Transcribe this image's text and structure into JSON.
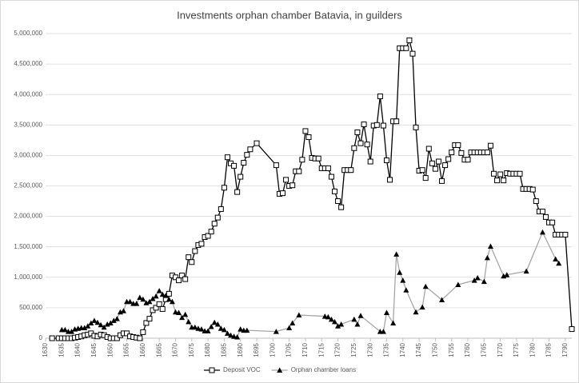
{
  "chart_data": {
    "type": "line",
    "title": "Investments orphan chamber Batavia, in guilders",
    "xlim": [
      1630,
      1792
    ],
    "xticks": [
      1630,
      1635,
      1640,
      1645,
      1650,
      1655,
      1660,
      1665,
      1670,
      1675,
      1680,
      1685,
      1690,
      1695,
      1700,
      1705,
      1710,
      1715,
      1720,
      1725,
      1730,
      1735,
      1740,
      1745,
      1750,
      1755,
      1760,
      1765,
      1770,
      1775,
      1780,
      1785,
      1790
    ],
    "ylim": [
      0,
      5000000
    ],
    "yticks": [
      0,
      {
        "value": 500000,
        "label": "500,000"
      },
      {
        "value": 1000000,
        "label": "1,000,000"
      },
      {
        "value": 1500000,
        "label": "1,500,000"
      },
      {
        "value": 2000000,
        "label": "2,000,000"
      },
      {
        "value": 2500000,
        "label": "2,500,000"
      },
      {
        "value": 3000000,
        "label": "3,000,000"
      },
      {
        "value": 3500000,
        "label": "3,500,000"
      },
      {
        "value": 4000000,
        "label": "4,000,000"
      },
      {
        "value": 4500000,
        "label": "4,500,000"
      },
      {
        "value": 5000000,
        "label": "5,000,000"
      }
    ],
    "grid": true,
    "legend": "bottom",
    "series": [
      {
        "name": "Deposit VOC",
        "color": "#000000",
        "marker": "square",
        "marker_color": "#ffffff",
        "x": [
          1632,
          1634,
          1635,
          1636,
          1637,
          1638,
          1639,
          1640,
          1641,
          1642,
          1643,
          1644,
          1645,
          1646,
          1647,
          1648,
          1649,
          1650,
          1651,
          1652,
          1653,
          1654,
          1655,
          1656,
          1657,
          1658,
          1659,
          1660,
          1661,
          1662,
          1663,
          1664,
          1665,
          1666,
          1667,
          1668,
          1669,
          1670,
          1671,
          1672,
          1673,
          1674,
          1675,
          1676,
          1677,
          1678,
          1679,
          1680,
          1681,
          1682,
          1683,
          1684,
          1685,
          1686,
          1687,
          1688,
          1689,
          1690,
          1691,
          1692,
          1693,
          1695,
          1701,
          1702,
          1703,
          1704,
          1705,
          1706,
          1707,
          1708,
          1709,
          1710,
          1711,
          1712,
          1713,
          1714,
          1715,
          1716,
          1717,
          1718,
          1719,
          1720,
          1721,
          1722,
          1723,
          1724,
          1725,
          1726,
          1727,
          1728,
          1729,
          1730,
          1731,
          1732,
          1733,
          1734,
          1735,
          1736,
          1737,
          1738,
          1739,
          1740,
          1741,
          1742,
          1743,
          1744,
          1745,
          1746,
          1747,
          1748,
          1749,
          1750,
          1751,
          1752,
          1753,
          1754,
          1755,
          1756,
          1757,
          1758,
          1759,
          1760,
          1761,
          1762,
          1763,
          1764,
          1765,
          1766,
          1767,
          1768,
          1769,
          1770,
          1771,
          1772,
          1773,
          1774,
          1775,
          1776,
          1777,
          1778,
          1779,
          1780,
          1781,
          1782,
          1783,
          1784,
          1785,
          1786,
          1787,
          1788,
          1789,
          1790,
          1792
        ],
        "values": [
          0,
          0,
          0,
          0,
          0,
          0,
          10000,
          20000,
          30000,
          50000,
          60000,
          80000,
          40000,
          30000,
          60000,
          50000,
          20000,
          0,
          0,
          0,
          50000,
          80000,
          80000,
          30000,
          20000,
          10000,
          0,
          100000,
          250000,
          320000,
          460000,
          500000,
          560000,
          480000,
          640000,
          730000,
          1030000,
          1000000,
          950000,
          1030000,
          970000,
          1330000,
          1250000,
          1430000,
          1530000,
          1550000,
          1660000,
          1680000,
          1750000,
          1880000,
          1980000,
          2120000,
          2470000,
          2970000,
          2870000,
          2830000,
          2400000,
          2650000,
          2880000,
          3010000,
          3100000,
          3200000,
          2840000,
          2370000,
          2380000,
          2600000,
          2500000,
          2510000,
          2740000,
          2740000,
          2930000,
          3400000,
          3300000,
          2960000,
          2950000,
          2950000,
          2790000,
          2790000,
          2790000,
          2650000,
          2410000,
          2250000,
          2150000,
          2760000,
          2760000,
          2760000,
          3120000,
          3380000,
          3200000,
          3510000,
          3180000,
          2900000,
          3490000,
          3500000,
          3970000,
          3490000,
          2920000,
          2600000,
          3560000,
          3560000,
          4760000,
          4760000,
          4760000,
          4890000,
          4670000,
          3460000,
          2750000,
          2760000,
          2630000,
          3110000,
          2870000,
          2780000,
          2900000,
          2580000,
          2840000,
          2940000,
          3050000,
          3170000,
          3170000,
          3040000,
          2930000,
          2930000,
          3050000,
          3050000,
          3050000,
          3050000,
          3050000,
          3050000,
          3160000,
          2700000,
          2590000,
          2690000,
          2590000,
          2710000,
          2700000,
          2700000,
          2700000,
          2700000,
          2450000,
          2450000,
          2450000,
          2440000,
          2250000,
          2080000,
          2080000,
          1990000,
          1900000,
          1900000,
          1700000,
          1700000,
          1700000,
          1700000,
          150000
        ]
      },
      {
        "name": "Orphan chamber loans",
        "color": "#a6a6a6",
        "marker": "triangle",
        "marker_color": "#000000",
        "x": [
          1635,
          1636,
          1637,
          1638,
          1639,
          1640,
          1641,
          1642,
          1643,
          1644,
          1645,
          1646,
          1647,
          1648,
          1649,
          1650,
          1651,
          1652,
          1653,
          1654,
          1655,
          1656,
          1657,
          1658,
          1659,
          1660,
          1661,
          1662,
          1663,
          1664,
          1665,
          1666,
          1667,
          1668,
          1669,
          1670,
          1671,
          1672,
          1673,
          1674,
          1675,
          1676,
          1677,
          1678,
          1679,
          1680,
          1681,
          1682,
          1683,
          1684,
          1685,
          1686,
          1687,
          1688,
          1689,
          1690,
          1691,
          1692,
          1701,
          1705,
          1706,
          1708,
          1716,
          1717,
          1718,
          1719,
          1720,
          1721,
          1725,
          1726,
          1727,
          1733,
          1734,
          1735,
          1737,
          1738,
          1739,
          1740,
          1741,
          1744,
          1746,
          1747,
          1752,
          1757,
          1762,
          1763,
          1765,
          1766,
          1767,
          1771,
          1772,
          1778,
          1783,
          1787,
          1788
        ],
        "values": [
          140000,
          140000,
          110000,
          110000,
          150000,
          160000,
          170000,
          170000,
          200000,
          250000,
          290000,
          260000,
          220000,
          180000,
          230000,
          250000,
          290000,
          320000,
          430000,
          450000,
          600000,
          600000,
          570000,
          570000,
          670000,
          640000,
          580000,
          600000,
          650000,
          690000,
          780000,
          720000,
          700000,
          640000,
          600000,
          430000,
          420000,
          340000,
          390000,
          270000,
          180000,
          180000,
          160000,
          150000,
          120000,
          120000,
          190000,
          260000,
          230000,
          160000,
          140000,
          80000,
          50000,
          30000,
          20000,
          150000,
          130000,
          130000,
          110000,
          170000,
          250000,
          380000,
          360000,
          350000,
          310000,
          270000,
          200000,
          230000,
          310000,
          230000,
          370000,
          110000,
          110000,
          420000,
          250000,
          1380000,
          1080000,
          950000,
          790000,
          430000,
          510000,
          850000,
          630000,
          880000,
          950000,
          990000,
          930000,
          1320000,
          1510000,
          1020000,
          1040000,
          1100000,
          1740000,
          1300000,
          1230000
        ]
      }
    ]
  }
}
